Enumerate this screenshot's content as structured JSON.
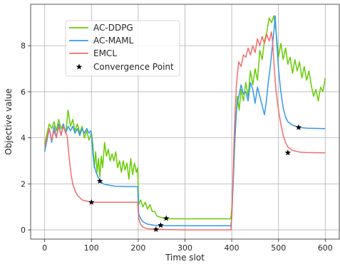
{
  "chart_data": {
    "type": "line",
    "title": "",
    "xlabel": "Time slot",
    "ylabel": "Objective value",
    "xlim": [
      -30,
      630
    ],
    "ylim": [
      -0.4,
      9.8
    ],
    "xticks": [
      0,
      100,
      200,
      300,
      400,
      500,
      600
    ],
    "yticks": [
      0,
      2,
      4,
      6,
      8
    ],
    "grid": true,
    "legend_position": "upper-left",
    "series": [
      {
        "name": "AC-DDPG",
        "color": "#66cc00",
        "points": [
          [
            0,
            3.7
          ],
          [
            5,
            4.2
          ],
          [
            10,
            4.6
          ],
          [
            15,
            4.4
          ],
          [
            20,
            4.7
          ],
          [
            25,
            4.3
          ],
          [
            30,
            4.8
          ],
          [
            35,
            4.4
          ],
          [
            40,
            4.6
          ],
          [
            45,
            4.2
          ],
          [
            50,
            5.2
          ],
          [
            55,
            4.5
          ],
          [
            60,
            4.8
          ],
          [
            65,
            4.3
          ],
          [
            70,
            4.6
          ],
          [
            75,
            4.2
          ],
          [
            80,
            4.5
          ],
          [
            85,
            4.0
          ],
          [
            90,
            4.3
          ],
          [
            95,
            3.9
          ],
          [
            100,
            4.2
          ],
          [
            103,
            3.7
          ],
          [
            106,
            2.7
          ],
          [
            109,
            3.4
          ],
          [
            112,
            2.5
          ],
          [
            115,
            3.1
          ],
          [
            118,
            2.3
          ],
          [
            121,
            3.2
          ],
          [
            124,
            2.7
          ],
          [
            128,
            3.8
          ],
          [
            132,
            3.2
          ],
          [
            136,
            3.5
          ],
          [
            140,
            3.0
          ],
          [
            144,
            3.3
          ],
          [
            148,
            3.0
          ],
          [
            152,
            3.4
          ],
          [
            156,
            2.7
          ],
          [
            160,
            3.0
          ],
          [
            164,
            2.5
          ],
          [
            168,
            3.0
          ],
          [
            172,
            2.6
          ],
          [
            176,
            2.9
          ],
          [
            180,
            2.2
          ],
          [
            184,
            3.1
          ],
          [
            188,
            2.4
          ],
          [
            192,
            2.9
          ],
          [
            196,
            2.5
          ],
          [
            199,
            2.7
          ],
          [
            201,
            1.1
          ],
          [
            205,
            1.3
          ],
          [
            210,
            1.0
          ],
          [
            215,
            1.2
          ],
          [
            220,
            0.9
          ],
          [
            225,
            1.1
          ],
          [
            230,
            0.8
          ],
          [
            235,
            0.8
          ],
          [
            240,
            0.6
          ],
          [
            248,
            0.55
          ],
          [
            255,
            0.5
          ],
          [
            270,
            0.48
          ],
          [
            300,
            0.48
          ],
          [
            350,
            0.48
          ],
          [
            398,
            0.48
          ],
          [
            400,
            0.9
          ],
          [
            404,
            2.5
          ],
          [
            408,
            4.5
          ],
          [
            412,
            5.8
          ],
          [
            416,
            5.2
          ],
          [
            420,
            6.1
          ],
          [
            425,
            5.6
          ],
          [
            430,
            6.4
          ],
          [
            435,
            5.8
          ],
          [
            440,
            6.9
          ],
          [
            445,
            6.3
          ],
          [
            450,
            7.0
          ],
          [
            455,
            6.5
          ],
          [
            460,
            7.8
          ],
          [
            465,
            7.4
          ],
          [
            470,
            8.2
          ],
          [
            475,
            8.6
          ],
          [
            480,
            9.2
          ],
          [
            485,
            9.0
          ],
          [
            490,
            9.3
          ],
          [
            495,
            8.6
          ],
          [
            500,
            7.5
          ],
          [
            505,
            8.1
          ],
          [
            510,
            7.4
          ],
          [
            515,
            7.9
          ],
          [
            520,
            7.2
          ],
          [
            525,
            7.5
          ],
          [
            530,
            6.8
          ],
          [
            535,
            7.4
          ],
          [
            540,
            6.9
          ],
          [
            545,
            7.3
          ],
          [
            550,
            6.6
          ],
          [
            555,
            7.1
          ],
          [
            560,
            6.5
          ],
          [
            565,
            6.9
          ],
          [
            570,
            6.3
          ],
          [
            575,
            5.8
          ],
          [
            580,
            6.1
          ],
          [
            585,
            5.6
          ],
          [
            590,
            6.2
          ],
          [
            595,
            6.0
          ],
          [
            600,
            6.6
          ]
        ]
      },
      {
        "name": "AC-MAML",
        "color": "#3399ee",
        "points": [
          [
            0,
            3.4
          ],
          [
            5,
            3.9
          ],
          [
            10,
            4.4
          ],
          [
            15,
            3.8
          ],
          [
            20,
            4.5
          ],
          [
            25,
            4.0
          ],
          [
            30,
            4.6
          ],
          [
            35,
            4.1
          ],
          [
            40,
            4.6
          ],
          [
            45,
            4.2
          ],
          [
            50,
            4.5
          ],
          [
            55,
            4.3
          ],
          [
            60,
            4.5
          ],
          [
            65,
            4.2
          ],
          [
            70,
            4.4
          ],
          [
            75,
            4.1
          ],
          [
            80,
            4.4
          ],
          [
            85,
            4.2
          ],
          [
            90,
            4.4
          ],
          [
            95,
            4.2
          ],
          [
            98,
            4.3
          ],
          [
            100,
            4.2
          ],
          [
            103,
            3.3
          ],
          [
            106,
            2.8
          ],
          [
            110,
            2.5
          ],
          [
            114,
            2.3
          ],
          [
            118,
            2.15
          ],
          [
            125,
            2.0
          ],
          [
            135,
            1.95
          ],
          [
            150,
            1.9
          ],
          [
            175,
            1.88
          ],
          [
            199,
            1.88
          ],
          [
            201,
            0.7
          ],
          [
            205,
            0.5
          ],
          [
            210,
            0.35
          ],
          [
            220,
            0.25
          ],
          [
            235,
            0.2
          ],
          [
            250,
            0.18
          ],
          [
            300,
            0.18
          ],
          [
            350,
            0.18
          ],
          [
            398,
            0.18
          ],
          [
            400,
            0.5
          ],
          [
            403,
            2.0
          ],
          [
            406,
            3.6
          ],
          [
            410,
            5.2
          ],
          [
            415,
            5.8
          ],
          [
            420,
            6.3
          ],
          [
            425,
            5.9
          ],
          [
            430,
            6.0
          ],
          [
            435,
            5.6
          ],
          [
            440,
            6.4
          ],
          [
            445,
            6.1
          ],
          [
            450,
            5.5
          ],
          [
            455,
            6.2
          ],
          [
            460,
            5.8
          ],
          [
            465,
            5.4
          ],
          [
            470,
            5.0
          ],
          [
            474,
            5.6
          ],
          [
            478,
            6.4
          ],
          [
            482,
            7.0
          ],
          [
            486,
            7.8
          ],
          [
            490,
            8.6
          ],
          [
            493,
            9.3
          ],
          [
            496,
            8.2
          ],
          [
            500,
            7.0
          ],
          [
            505,
            6.0
          ],
          [
            510,
            5.3
          ],
          [
            515,
            4.9
          ],
          [
            520,
            4.7
          ],
          [
            530,
            4.55
          ],
          [
            545,
            4.45
          ],
          [
            560,
            4.42
          ],
          [
            600,
            4.4
          ]
        ]
      },
      {
        "name": "EMCL",
        "color": "#f26d6d",
        "points": [
          [
            0,
            3.6
          ],
          [
            5,
            4.0
          ],
          [
            10,
            4.4
          ],
          [
            15,
            3.9
          ],
          [
            20,
            4.3
          ],
          [
            25,
            4.0
          ],
          [
            30,
            4.5
          ],
          [
            35,
            4.1
          ],
          [
            40,
            4.5
          ],
          [
            45,
            4.2
          ],
          [
            48,
            4.1
          ],
          [
            52,
            3.2
          ],
          [
            56,
            2.5
          ],
          [
            60,
            2.0
          ],
          [
            65,
            1.7
          ],
          [
            70,
            1.5
          ],
          [
            80,
            1.3
          ],
          [
            90,
            1.25
          ],
          [
            100,
            1.2
          ],
          [
            150,
            1.2
          ],
          [
            199,
            1.2
          ],
          [
            201,
            0.5
          ],
          [
            205,
            0.25
          ],
          [
            210,
            0.12
          ],
          [
            220,
            0.05
          ],
          [
            240,
            0.02
          ],
          [
            300,
            0.0
          ],
          [
            350,
            0.0
          ],
          [
            398,
            0.0
          ],
          [
            400,
            0.5
          ],
          [
            403,
            2.5
          ],
          [
            406,
            4.5
          ],
          [
            410,
            6.3
          ],
          [
            415,
            7.3
          ],
          [
            420,
            7.1
          ],
          [
            425,
            7.6
          ],
          [
            430,
            7.5
          ],
          [
            435,
            7.9
          ],
          [
            440,
            7.6
          ],
          [
            445,
            8.0
          ],
          [
            450,
            7.7
          ],
          [
            455,
            8.3
          ],
          [
            460,
            8.0
          ],
          [
            465,
            8.4
          ],
          [
            470,
            8.1
          ],
          [
            475,
            8.5
          ],
          [
            480,
            8.2
          ],
          [
            485,
            8.6
          ],
          [
            488,
            8.0
          ],
          [
            491,
            7.0
          ],
          [
            495,
            6.0
          ],
          [
            500,
            5.2
          ],
          [
            505,
            4.6
          ],
          [
            510,
            4.1
          ],
          [
            515,
            3.8
          ],
          [
            520,
            3.6
          ],
          [
            530,
            3.45
          ],
          [
            545,
            3.38
          ],
          [
            560,
            3.36
          ],
          [
            600,
            3.35
          ]
        ]
      }
    ],
    "convergence_points": {
      "name": "Convergence Point",
      "points": [
        [
          100,
          1.2
        ],
        [
          118,
          2.12
        ],
        [
          238,
          0.02
        ],
        [
          248,
          0.2
        ],
        [
          260,
          0.5
        ],
        [
          520,
          3.35
        ],
        [
          543,
          4.45
        ]
      ]
    }
  }
}
